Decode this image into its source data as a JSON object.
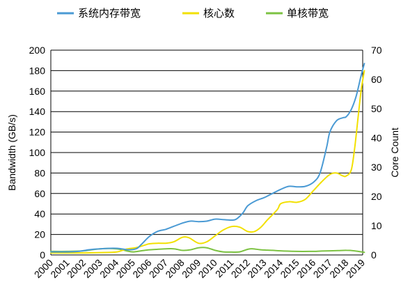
{
  "chart_data": {
    "type": "line",
    "title": "",
    "x": [
      "2000",
      "2001",
      "2002",
      "2003",
      "2004",
      "2005",
      "2006",
      "2007",
      "2008",
      "2009",
      "2010",
      "2011",
      "2012",
      "2013",
      "2014",
      "2015",
      "2016",
      "2017",
      "2018",
      "2019"
    ],
    "xlim": [
      2000,
      2019
    ],
    "y_left": {
      "label": "Bandwidth (GB/s)",
      "range": [
        0,
        200
      ],
      "ticks": [
        0,
        20,
        40,
        60,
        80,
        100,
        120,
        140,
        160,
        180,
        200
      ]
    },
    "y_right": {
      "label": "Core Count",
      "range": [
        0,
        70
      ],
      "ticks": [
        0,
        10,
        20,
        30,
        40,
        50,
        60,
        70
      ]
    },
    "grid": "horizontal",
    "legend": "top",
    "series": [
      {
        "name": "系统内存带宽",
        "axis": "left",
        "color": "#4A9AD4",
        "points": [
          [
            2000,
            3
          ],
          [
            2001,
            3
          ],
          [
            2001.7,
            3.5
          ],
          [
            2002.3,
            5
          ],
          [
            2003,
            6
          ],
          [
            2003.8,
            6.5
          ],
          [
            2004.3,
            6
          ],
          [
            2004.7,
            5
          ],
          [
            2005.2,
            6
          ],
          [
            2005.5,
            10
          ],
          [
            2006,
            18
          ],
          [
            2006.5,
            23
          ],
          [
            2007,
            25
          ],
          [
            2007.5,
            28
          ],
          [
            2008,
            31
          ],
          [
            2008.5,
            33
          ],
          [
            2009,
            32.5
          ],
          [
            2009.5,
            33
          ],
          [
            2010,
            35
          ],
          [
            2010.5,
            34.5
          ],
          [
            2011,
            34
          ],
          [
            2011.3,
            35
          ],
          [
            2011.7,
            41
          ],
          [
            2012,
            48
          ],
          [
            2012.5,
            53
          ],
          [
            2013,
            56
          ],
          [
            2013.5,
            60
          ],
          [
            2014,
            64
          ],
          [
            2014.5,
            67
          ],
          [
            2015,
            66.5
          ],
          [
            2015.5,
            67
          ],
          [
            2016,
            71
          ],
          [
            2016.4,
            80
          ],
          [
            2016.8,
            105
          ],
          [
            2017,
            120
          ],
          [
            2017.4,
            131
          ],
          [
            2017.8,
            134
          ],
          [
            2018,
            135
          ],
          [
            2018.3,
            142
          ],
          [
            2018.6,
            155
          ],
          [
            2018.9,
            175
          ],
          [
            2019.1,
            187
          ]
        ]
      },
      {
        "name": "核心数",
        "axis": "right",
        "color": "#F2E000",
        "points": [
          [
            2000,
            0.7
          ],
          [
            2001,
            0.7
          ],
          [
            2002,
            0.7
          ],
          [
            2003,
            0.8
          ],
          [
            2004,
            1
          ],
          [
            2004.6,
            2
          ],
          [
            2005.2,
            2.5
          ],
          [
            2005.7,
            3.3
          ],
          [
            2006,
            3.8
          ],
          [
            2006.5,
            4
          ],
          [
            2007,
            4
          ],
          [
            2007.5,
            4.5
          ],
          [
            2008,
            6
          ],
          [
            2008.4,
            5.9
          ],
          [
            2009,
            4
          ],
          [
            2009.5,
            4.5
          ],
          [
            2010,
            6.5
          ],
          [
            2010.5,
            8.5
          ],
          [
            2011,
            9.7
          ],
          [
            2011.5,
            9.5
          ],
          [
            2012,
            8
          ],
          [
            2012.4,
            8
          ],
          [
            2012.8,
            9.5
          ],
          [
            2013.2,
            12
          ],
          [
            2013.8,
            15.5
          ],
          [
            2014,
            17.5
          ],
          [
            2014.5,
            18.2
          ],
          [
            2015,
            18
          ],
          [
            2015.5,
            19
          ],
          [
            2016,
            22
          ],
          [
            2016.5,
            25
          ],
          [
            2017,
            27.5
          ],
          [
            2017.4,
            28
          ],
          [
            2017.8,
            27
          ],
          [
            2018,
            27
          ],
          [
            2018.3,
            29
          ],
          [
            2018.5,
            36
          ],
          [
            2018.7,
            46
          ],
          [
            2018.9,
            56
          ],
          [
            2019.1,
            63
          ]
        ]
      },
      {
        "name": "单核带宽",
        "axis": "left",
        "color": "#7CC242",
        "points": [
          [
            2000,
            3.5
          ],
          [
            2001,
            3.5
          ],
          [
            2002,
            4
          ],
          [
            2003,
            6
          ],
          [
            2004,
            6
          ],
          [
            2004.6,
            4
          ],
          [
            2005,
            3
          ],
          [
            2005.5,
            4
          ],
          [
            2006,
            5
          ],
          [
            2006.5,
            5.5
          ],
          [
            2007,
            6
          ],
          [
            2007.5,
            6
          ],
          [
            2008,
            4.5
          ],
          [
            2008.5,
            5
          ],
          [
            2009,
            7
          ],
          [
            2009.5,
            7
          ],
          [
            2010,
            4.5
          ],
          [
            2010.5,
            3
          ],
          [
            2011,
            2.8
          ],
          [
            2011.5,
            3
          ],
          [
            2012,
            5.5
          ],
          [
            2012.3,
            6
          ],
          [
            2012.8,
            5
          ],
          [
            2013.5,
            4.5
          ],
          [
            2014,
            4
          ],
          [
            2015,
            3.5
          ],
          [
            2016,
            3.5
          ],
          [
            2016.5,
            3.8
          ],
          [
            2017,
            4
          ],
          [
            2017.5,
            4.2
          ],
          [
            2018,
            4.5
          ],
          [
            2018.5,
            4
          ],
          [
            2019.1,
            2.5
          ]
        ]
      }
    ]
  }
}
